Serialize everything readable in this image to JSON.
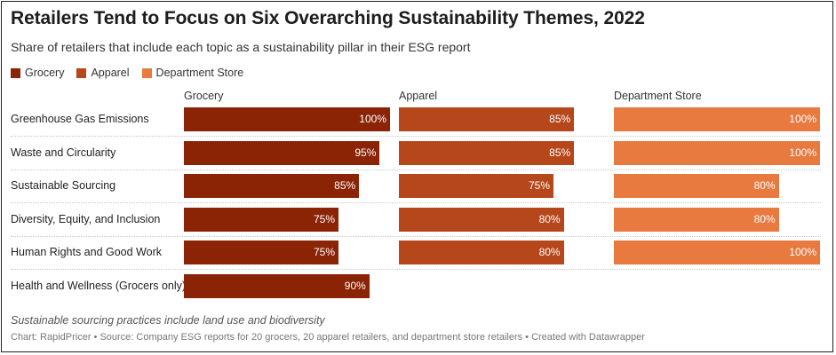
{
  "title": "Retailers Tend to Focus on Six Overarching Sustainability Themes, 2022",
  "subtitle": "Share of retailers that include each topic as a sustainability pillar in their ESG report",
  "note": "Sustainable sourcing practices include land use and biodiversity",
  "footer": "Chart: RapidPricer • Source: Company ESG reports for 20 grocers, 20 apparel retailers, and department store retailers • Created with Datawrapper",
  "colors": {
    "grocery": "#8b2305",
    "apparel": "#b5471b",
    "department_store": "#e8793f"
  },
  "chart_data": {
    "type": "bar",
    "orientation": "horizontal",
    "layout": "small multiples",
    "title": "Retailers Tend to Focus on Six Overarching Sustainability Themes, 2022",
    "subtitle": "Share of retailers that include each topic as a sustainability pillar in their ESG report",
    "categories": [
      "Greenhouse Gas Emissions",
      "Waste and Circularity",
      "Sustainable Sourcing",
      "Diversity, Equity, and Inclusion",
      "Human Rights and Good Work",
      "Health and Wellness (Grocers only)"
    ],
    "unit": "%",
    "xlim": [
      0,
      100
    ],
    "legend_position": "top-left",
    "series": [
      {
        "name": "Grocery",
        "color": "#8b2305",
        "values": [
          100,
          95,
          85,
          75,
          75,
          90
        ],
        "labels": [
          "100%",
          "95%",
          "85%",
          "75%",
          "75%",
          "90%"
        ]
      },
      {
        "name": "Apparel",
        "color": "#b5471b",
        "values": [
          85,
          85,
          75,
          80,
          80,
          null
        ],
        "labels": [
          "85%",
          "85%",
          "75%",
          "80%",
          "80%",
          ""
        ]
      },
      {
        "name": "Department Store",
        "color": "#e8793f",
        "values": [
          100,
          100,
          80,
          80,
          100,
          null
        ],
        "labels": [
          "100%",
          "100%",
          "80%",
          "80%",
          "100%",
          ""
        ]
      }
    ]
  }
}
